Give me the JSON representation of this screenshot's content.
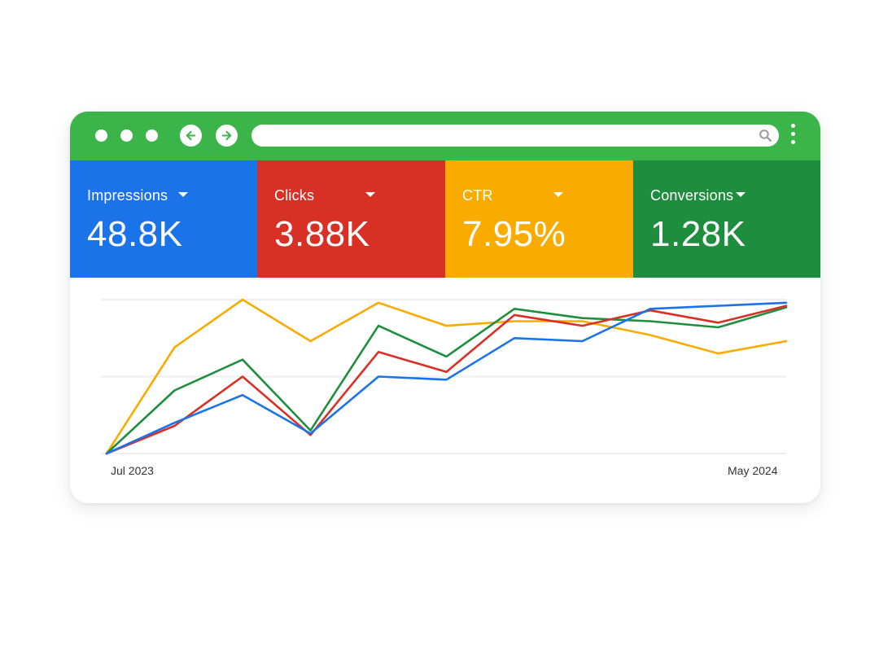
{
  "browser": {
    "colors": {
      "titlebar": "#3bb54a"
    },
    "icons": [
      "back-arrow-icon",
      "forward-arrow-icon",
      "search-icon",
      "more-vertical-icon"
    ]
  },
  "metrics": [
    {
      "label": "Impressions",
      "value": "48.8K",
      "color": "#1a73e8"
    },
    {
      "label": "Clicks",
      "value": "3.88K",
      "color": "#d93025"
    },
    {
      "label": "CTR",
      "value": "7.95%",
      "color": "#f9ab00"
    },
    {
      "label": "Conversions",
      "value": "1.28K",
      "color": "#1e8e3e"
    }
  ],
  "chart_data": {
    "type": "line",
    "x_labels": [
      "Jul 2023",
      "May 2024"
    ],
    "grid": true,
    "ylim": [
      0,
      100
    ],
    "series": [
      {
        "color": "#f9ab00",
        "values": [
          0,
          69,
          100,
          73,
          98,
          83,
          86,
          86,
          77,
          65,
          73
        ]
      },
      {
        "color": "#1e8e3e",
        "values": [
          0,
          41,
          61,
          15,
          83,
          63,
          94,
          88,
          86,
          82,
          95
        ]
      },
      {
        "color": "#d93025",
        "values": [
          0,
          18,
          50,
          12,
          66,
          53,
          90,
          83,
          93,
          85,
          96
        ]
      },
      {
        "color": "#1a73e8",
        "values": [
          0,
          20,
          38,
          13,
          50,
          48,
          75,
          73,
          94,
          96,
          98
        ]
      }
    ]
  }
}
